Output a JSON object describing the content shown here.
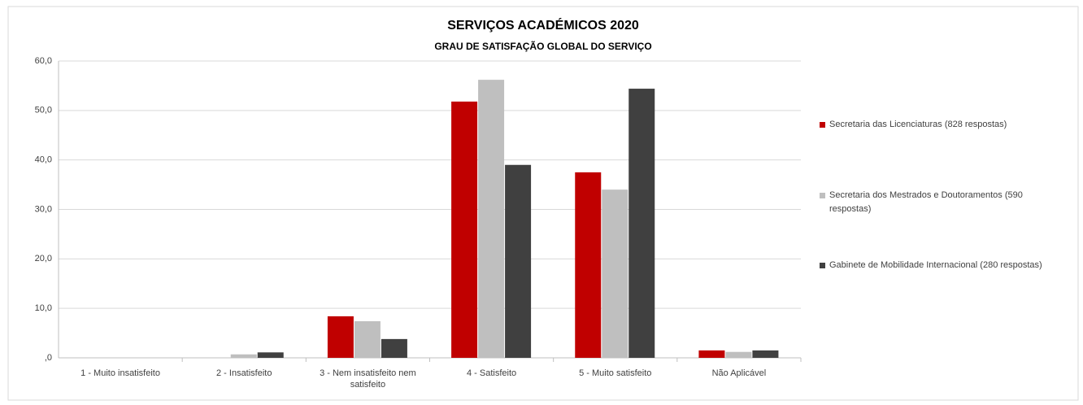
{
  "chart_data": {
    "type": "bar",
    "title": "SERVIÇOS ACADÉMICOS 2020",
    "subtitle": "GRAU DE SATISFAÇÃO GLOBAL DO SERVIÇO",
    "categories": [
      "1 - Muito insatisfeito",
      "2 - Insatisfeito",
      "3 - Nem insatisfeito nem satisfeito",
      "4 - Satisfeito",
      "5 - Muito satisfeito",
      "Não Aplicável"
    ],
    "series": [
      {
        "name": "Secretaria das Licenciaturas (828 respostas)",
        "color": "#c00000",
        "values": [
          0,
          0,
          8.4,
          51.8,
          37.5,
          1.5
        ]
      },
      {
        "name": "Secretaria dos Mestrados e Doutoramentos (590 respostas)",
        "color": "#bfbfbf",
        "values": [
          0,
          0.7,
          7.4,
          56.2,
          34.0,
          1.2
        ]
      },
      {
        "name": "Gabinete de Mobilidade Internacional (280 respostas)",
        "color": "#404040",
        "values": [
          0,
          1.1,
          3.8,
          39.0,
          54.4,
          1.5
        ]
      }
    ],
    "ylim": [
      0,
      60
    ],
    "yticks": [
      {
        "value": 0,
        "label": ",0"
      },
      {
        "value": 10,
        "label": "10,0"
      },
      {
        "value": 20,
        "label": "20,0"
      },
      {
        "value": 30,
        "label": "30,0"
      },
      {
        "value": 40,
        "label": "40,0"
      },
      {
        "value": 50,
        "label": "50,0"
      },
      {
        "value": 60,
        "label": "60,0"
      }
    ],
    "grid": true,
    "legend": "right"
  }
}
